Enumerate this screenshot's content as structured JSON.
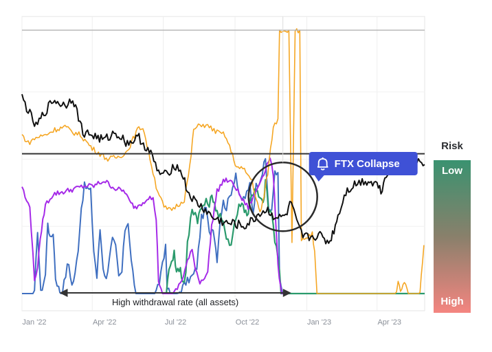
{
  "colors": {
    "black": "#111111",
    "orange": "#f5a623",
    "purple": "#a52ae8",
    "green": "#2a9a6c",
    "blue": "#3f6fc0",
    "callout": "#3f51d6",
    "ref_line": "#333333",
    "top_line": "#b8b8b8"
  },
  "chart_data": {
    "type": "line",
    "title": "",
    "xlabel": "",
    "ylabel": "",
    "x_ticks": [
      "Jan '22",
      "Apr '22",
      "Jul '22",
      "Oct '22",
      "Jan '23",
      "Apr '23"
    ],
    "x_range": [
      "2022-01-01",
      "2023-05-31"
    ],
    "y_range": [
      0,
      1
    ],
    "grid": true,
    "series": [
      {
        "key": "black",
        "values": [
          [
            0,
            0.73
          ],
          [
            8,
            0.68
          ],
          [
            18,
            0.62
          ],
          [
            28,
            0.67
          ],
          [
            40,
            0.72
          ],
          [
            55,
            0.7
          ],
          [
            65,
            0.73
          ],
          [
            78,
            0.6
          ],
          [
            90,
            0.59
          ],
          [
            105,
            0.57
          ],
          [
            120,
            0.6
          ],
          [
            135,
            0.56
          ],
          [
            150,
            0.58
          ],
          [
            165,
            0.52
          ],
          [
            175,
            0.45
          ],
          [
            185,
            0.44
          ],
          [
            195,
            0.48
          ],
          [
            205,
            0.45
          ],
          [
            212,
            0.38
          ],
          [
            222,
            0.34
          ],
          [
            235,
            0.31
          ],
          [
            245,
            0.28
          ],
          [
            255,
            0.27
          ],
          [
            262,
            0.26
          ],
          [
            272,
            0.26
          ],
          [
            285,
            0.25
          ],
          [
            295,
            0.27
          ],
          [
            305,
            0.3
          ],
          [
            315,
            0.31
          ],
          [
            322,
            0.29
          ],
          [
            330,
            0.28
          ],
          [
            338,
            0.29
          ],
          [
            345,
            0.34
          ],
          [
            352,
            0.26
          ],
          [
            360,
            0.21
          ],
          [
            372,
            0.21
          ],
          [
            380,
            0.22
          ],
          [
            393,
            0.19
          ],
          [
            398,
            0.22
          ],
          [
            405,
            0.29
          ],
          [
            415,
            0.38
          ],
          [
            428,
            0.41
          ],
          [
            440,
            0.42
          ],
          [
            455,
            0.41
          ],
          [
            460,
            0.38
          ],
          [
            465,
            0.43
          ],
          [
            470,
            0.47
          ],
          [
            480,
            0.51
          ],
          [
            490,
            0.5
          ],
          [
            500,
            0.49
          ],
          [
            510,
            0.49
          ],
          [
            516,
            0.48
          ]
        ]
      },
      {
        "key": "orange",
        "values": [
          [
            0,
            0.59
          ],
          [
            8,
            0.56
          ],
          [
            18,
            0.58
          ],
          [
            30,
            0.59
          ],
          [
            42,
            0.61
          ],
          [
            55,
            0.62
          ],
          [
            65,
            0.6
          ],
          [
            75,
            0.59
          ],
          [
            90,
            0.54
          ],
          [
            110,
            0.5
          ],
          [
            125,
            0.51
          ],
          [
            135,
            0.53
          ],
          [
            148,
            0.61
          ],
          [
            155,
            0.62
          ],
          [
            162,
            0.53
          ],
          [
            172,
            0.4
          ],
          [
            182,
            0.32
          ],
          [
            190,
            0.31
          ],
          [
            200,
            0.33
          ],
          [
            208,
            0.35
          ],
          [
            215,
            0.47
          ],
          [
            220,
            0.61
          ],
          [
            230,
            0.63
          ],
          [
            240,
            0.62
          ],
          [
            250,
            0.6
          ],
          [
            260,
            0.59
          ],
          [
            268,
            0.53
          ],
          [
            275,
            0.47
          ],
          [
            285,
            0.46
          ],
          [
            295,
            0.42
          ],
          [
            300,
            0.35
          ],
          [
            305,
            0.3
          ],
          [
            310,
            0.36
          ],
          [
            315,
            0.45
          ],
          [
            322,
            0.62
          ],
          [
            328,
            0.65
          ],
          [
            330,
            0.98
          ],
          [
            342,
            0.98
          ],
          [
            346,
            0.19
          ],
          [
            350,
            0.98
          ],
          [
            356,
            0.98
          ],
          [
            358,
            0.19
          ],
          [
            364,
            0.21
          ],
          [
            372,
            0.22
          ],
          [
            375,
            0.15
          ],
          [
            378,
            0.0
          ],
          [
            480,
            0.0
          ],
          [
            482,
            0.04
          ],
          [
            485,
            0.01
          ],
          [
            490,
            0.04
          ],
          [
            495,
            0.0
          ],
          [
            510,
            0.0
          ],
          [
            515,
            0.18
          ]
        ]
      },
      {
        "key": "purple",
        "values": [
          [
            0,
            0.4
          ],
          [
            6,
            0.34
          ],
          [
            10,
            0.33
          ],
          [
            16,
            0.05
          ],
          [
            20,
            0.1
          ],
          [
            25,
            0.24
          ],
          [
            30,
            0.33
          ],
          [
            40,
            0.37
          ],
          [
            55,
            0.38
          ],
          [
            68,
            0.39
          ],
          [
            80,
            0.4
          ],
          [
            92,
            0.4
          ],
          [
            105,
            0.42
          ],
          [
            120,
            0.39
          ],
          [
            132,
            0.38
          ],
          [
            138,
            0.34
          ],
          [
            145,
            0.32
          ],
          [
            155,
            0.34
          ],
          [
            162,
            0.36
          ],
          [
            168,
            0.35
          ],
          [
            172,
            0.28
          ],
          [
            175,
            0.05
          ],
          [
            180,
            0.0
          ],
          [
            195,
            0.0
          ],
          [
            205,
            0.05
          ],
          [
            212,
            0.12
          ],
          [
            218,
            0.16
          ],
          [
            222,
            0.1
          ],
          [
            228,
            0.04
          ],
          [
            238,
            0.08
          ],
          [
            243,
            0.25
          ],
          [
            250,
            0.38
          ],
          [
            258,
            0.42
          ],
          [
            265,
            0.42
          ],
          [
            273,
            0.4
          ],
          [
            282,
            0.35
          ],
          [
            290,
            0.32
          ],
          [
            300,
            0.38
          ],
          [
            310,
            0.45
          ],
          [
            318,
            0.51
          ],
          [
            322,
            0.44
          ],
          [
            325,
            0.28
          ],
          [
            328,
            0.1
          ],
          [
            333,
            0.0
          ],
          [
            340,
            0.0
          ]
        ]
      },
      {
        "key": "green",
        "values": [
          [
            185,
            0.0
          ],
          [
            190,
            0.12
          ],
          [
            195,
            0.15
          ],
          [
            198,
            0.08
          ],
          [
            203,
            0.1
          ],
          [
            206,
            0.04
          ],
          [
            210,
            0.07
          ],
          [
            212,
            0.18
          ],
          [
            218,
            0.32
          ],
          [
            222,
            0.3
          ],
          [
            225,
            0.28
          ],
          [
            232,
            0.33
          ],
          [
            240,
            0.34
          ],
          [
            245,
            0.36
          ],
          [
            250,
            0.3
          ],
          [
            256,
            0.27
          ],
          [
            262,
            0.22
          ],
          [
            268,
            0.18
          ],
          [
            272,
            0.26
          ],
          [
            276,
            0.3
          ],
          [
            280,
            0.34
          ],
          [
            285,
            0.32
          ],
          [
            290,
            0.29
          ],
          [
            293,
            0.37
          ],
          [
            300,
            0.38
          ],
          [
            305,
            0.35
          ],
          [
            309,
            0.33
          ],
          [
            312,
            0.42
          ],
          [
            316,
            0.31
          ],
          [
            320,
            0.3
          ],
          [
            324,
            0.2
          ],
          [
            328,
            0.13
          ],
          [
            332,
            0.0
          ],
          [
            516,
            0.0
          ]
        ]
      },
      {
        "key": "blue",
        "values": [
          [
            0,
            0.0
          ],
          [
            16,
            0.0
          ],
          [
            20,
            0.24
          ],
          [
            22,
            0.12
          ],
          [
            24,
            0.0
          ],
          [
            30,
            0.07
          ],
          [
            33,
            0.27
          ],
          [
            36,
            0.2
          ],
          [
            40,
            0.23
          ],
          [
            43,
            0.06
          ],
          [
            47,
            0.02
          ],
          [
            50,
            0.0
          ],
          [
            54,
            0.04
          ],
          [
            58,
            0.1
          ],
          [
            60,
            0.11
          ],
          [
            64,
            0.03
          ],
          [
            68,
            0.07
          ],
          [
            72,
            0.17
          ],
          [
            76,
            0.32
          ],
          [
            80,
            0.4
          ],
          [
            84,
            0.39
          ],
          [
            88,
            0.38
          ],
          [
            92,
            0.16
          ],
          [
            96,
            0.06
          ],
          [
            100,
            0.24
          ],
          [
            104,
            0.1
          ],
          [
            108,
            0.05
          ],
          [
            112,
            0.14
          ],
          [
            116,
            0.2
          ],
          [
            120,
            0.17
          ],
          [
            124,
            0.06
          ],
          [
            128,
            0.08
          ],
          [
            132,
            0.24
          ],
          [
            136,
            0.27
          ],
          [
            140,
            0.12
          ],
          [
            146,
            0.0
          ],
          [
            160,
            0.0
          ],
          [
            172,
            0.0
          ],
          [
            176,
            0.04
          ],
          [
            180,
            0.12
          ],
          [
            184,
            0.17
          ],
          [
            186,
            0.02
          ],
          [
            190,
            0.0
          ],
          [
            200,
            0.0
          ],
          [
            210,
            0.04
          ],
          [
            220,
            0.07
          ],
          [
            224,
            0.1
          ],
          [
            230,
            0.28
          ],
          [
            236,
            0.32
          ],
          [
            240,
            0.22
          ],
          [
            245,
            0.25
          ],
          [
            250,
            0.13
          ],
          [
            254,
            0.28
          ],
          [
            258,
            0.34
          ],
          [
            262,
            0.32
          ],
          [
            266,
            0.36
          ],
          [
            270,
            0.4
          ],
          [
            274,
            0.45
          ],
          [
            278,
            0.36
          ],
          [
            282,
            0.35
          ],
          [
            286,
            0.36
          ],
          [
            290,
            0.38
          ],
          [
            292,
            0.41
          ],
          [
            296,
            0.3
          ],
          [
            300,
            0.4
          ],
          [
            304,
            0.42
          ],
          [
            308,
            0.45
          ],
          [
            312,
            0.5
          ],
          [
            316,
            0.32
          ],
          [
            320,
            0.3
          ],
          [
            324,
            0.46
          ],
          [
            328,
            0.45
          ],
          [
            330,
            0.05
          ],
          [
            334,
            0.0
          ],
          [
            516,
            0.0
          ]
        ]
      }
    ],
    "reference_lines": [
      0.52,
      0.98
    ],
    "event": {
      "label": "FTX Collapse",
      "x": 322,
      "y": 0.36
    },
    "annotation": {
      "text": "High withdrawal rate (all assets)",
      "x_start": 48,
      "x_end": 345
    }
  },
  "risk": {
    "title": "Risk",
    "low": "Low",
    "high": "High"
  }
}
